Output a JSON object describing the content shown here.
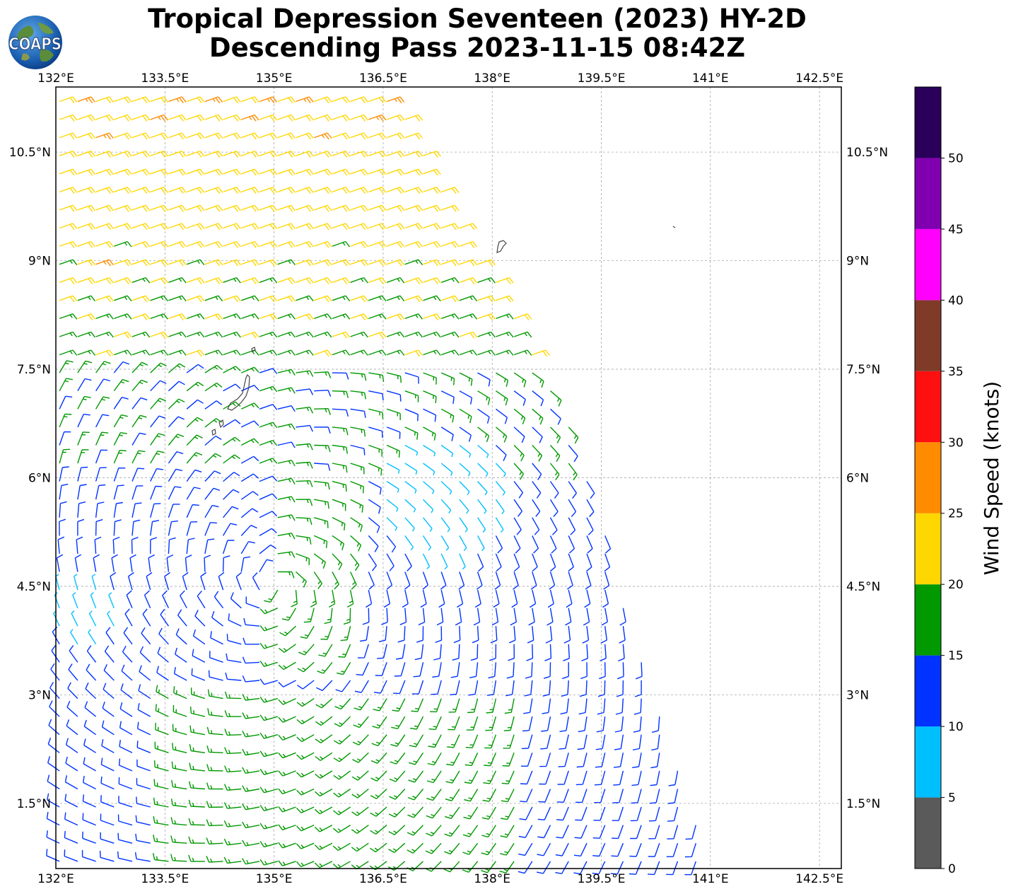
{
  "title": {
    "line1": "Tropical Depression Seventeen (2023) HY-2D",
    "line2": "Descending Pass 2023-11-15 08:42Z"
  },
  "logo": {
    "text": "COAPS"
  },
  "map": {
    "lon_range": [
      132.0,
      142.8
    ],
    "lat_range": [
      0.6,
      11.4
    ],
    "lon_ticks": [
      "132°E",
      "133.5°E",
      "135°E",
      "136.5°E",
      "138°E",
      "139.5°E",
      "141°E",
      "142.5°E"
    ],
    "lat_ticks": [
      "1.5°N",
      "3°N",
      "4.5°N",
      "6°N",
      "7.5°N",
      "9°N",
      "10.5°N"
    ],
    "swath_corners_deg": [
      [
        132.0,
        11.4
      ],
      [
        136.6,
        11.4
      ],
      [
        139.0,
        7.0
      ],
      [
        141.0,
        0.6
      ],
      [
        132.0,
        0.6
      ]
    ],
    "storm_center_deg": [
      135.0,
      4.5
    ],
    "gridlines": true
  },
  "colorbar": {
    "label": "Wind Speed (knots)",
    "ticks": [
      "0",
      "5",
      "10",
      "15",
      "20",
      "25",
      "30",
      "35",
      "40",
      "45",
      "50"
    ],
    "bins": [
      {
        "min": 0,
        "max": 5,
        "color": "#5a5a5a"
      },
      {
        "min": 5,
        "max": 10,
        "color": "#00bfff"
      },
      {
        "min": 10,
        "max": 15,
        "color": "#0033ff"
      },
      {
        "min": 15,
        "max": 20,
        "color": "#009900"
      },
      {
        "min": 20,
        "max": 25,
        "color": "#ffd700"
      },
      {
        "min": 25,
        "max": 30,
        "color": "#ff8c00"
      },
      {
        "min": 30,
        "max": 35,
        "color": "#ff1010"
      },
      {
        "min": 35,
        "max": 40,
        "color": "#7f3a28"
      },
      {
        "min": 40,
        "max": 45,
        "color": "#ff00ff"
      },
      {
        "min": 45,
        "max": 50,
        "color": "#8000b0"
      },
      {
        "min": 50,
        "max": 55,
        "color": "#2a005a"
      }
    ]
  }
}
